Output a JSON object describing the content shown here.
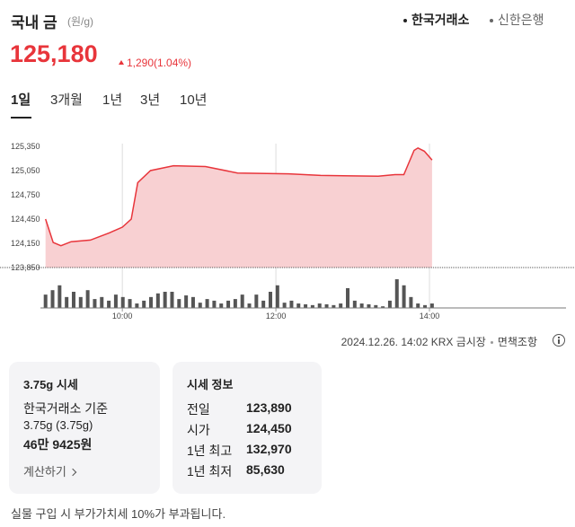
{
  "header": {
    "title": "국내 금",
    "unit": "(원/g)",
    "sources": [
      "한국거래소",
      "신한은행"
    ]
  },
  "price": {
    "value": "125,180",
    "change": "1,290",
    "change_pct": "(1.04%)"
  },
  "tabs": [
    "1일",
    "3개월",
    "1년",
    "3년",
    "10년"
  ],
  "chart_data": {
    "type": "area",
    "x": [
      540,
      546,
      552,
      560,
      575,
      590,
      600,
      607,
      612,
      622,
      640,
      665,
      690,
      730,
      755,
      800,
      813,
      820,
      824,
      828,
      831,
      836,
      842
    ],
    "series": [
      {
        "values": [
          124450,
          124160,
          124120,
          124170,
          124190,
          124280,
          124350,
          124450,
          124900,
          125050,
          125110,
          125100,
          125020,
          125010,
          124990,
          124980,
          125000,
          125000,
          125150,
          125300,
          125330,
          125290,
          125180
        ],
        "color": "#e8353b",
        "fill": "#f8d0d2"
      }
    ],
    "xlim": [
      536,
      946
    ],
    "xticks": [
      {
        "value": 600,
        "label": "10:00"
      },
      {
        "value": 720,
        "label": "12:00"
      },
      {
        "value": 840,
        "label": "14:00"
      }
    ],
    "ylim": [
      123850,
      125450
    ],
    "yticks": [
      {
        "value": 125350,
        "label": "125,350"
      },
      {
        "value": 125050,
        "label": "125,050"
      },
      {
        "value": 124750,
        "label": "124,750"
      },
      {
        "value": 124450,
        "label": "124,450"
      },
      {
        "value": 124150,
        "label": "124,150"
      },
      {
        "value": 123850,
        "label": "123,850"
      }
    ],
    "volume": {
      "values": [
        33,
        44,
        56,
        27,
        40,
        27,
        44,
        22,
        27,
        18,
        33,
        27,
        22,
        11,
        18,
        27,
        36,
        40,
        40,
        22,
        31,
        27,
        13,
        22,
        18,
        11,
        18,
        22,
        33,
        11,
        33,
        18,
        40,
        56,
        13,
        18,
        11,
        9,
        7,
        11,
        9,
        7,
        11,
        49,
        18,
        11,
        9,
        7,
        4,
        18,
        71,
        56,
        27,
        11,
        7,
        11
      ],
      "color": "#555555",
      "ylim": [
        0,
        100
      ]
    }
  },
  "meta": {
    "timestamp": "2024.12.26. 14:02 KRX 금시장",
    "disclaimer": "면책조항"
  },
  "card_left": {
    "title": "3.75g 시세",
    "basis": "한국거래소 기준",
    "weight": "3.75g (3.75g)",
    "amount": "46만 9425원",
    "link": "계산하기"
  },
  "card_right": {
    "title": "시세 정보",
    "rows": [
      [
        "전일",
        "123,890"
      ],
      [
        "시가",
        "124,450"
      ],
      [
        "1년 최고",
        "132,970"
      ],
      [
        "1년 최저",
        "85,630"
      ]
    ]
  },
  "footer": "실물 구입 시 부가가치세 10%가 부과됩니다."
}
